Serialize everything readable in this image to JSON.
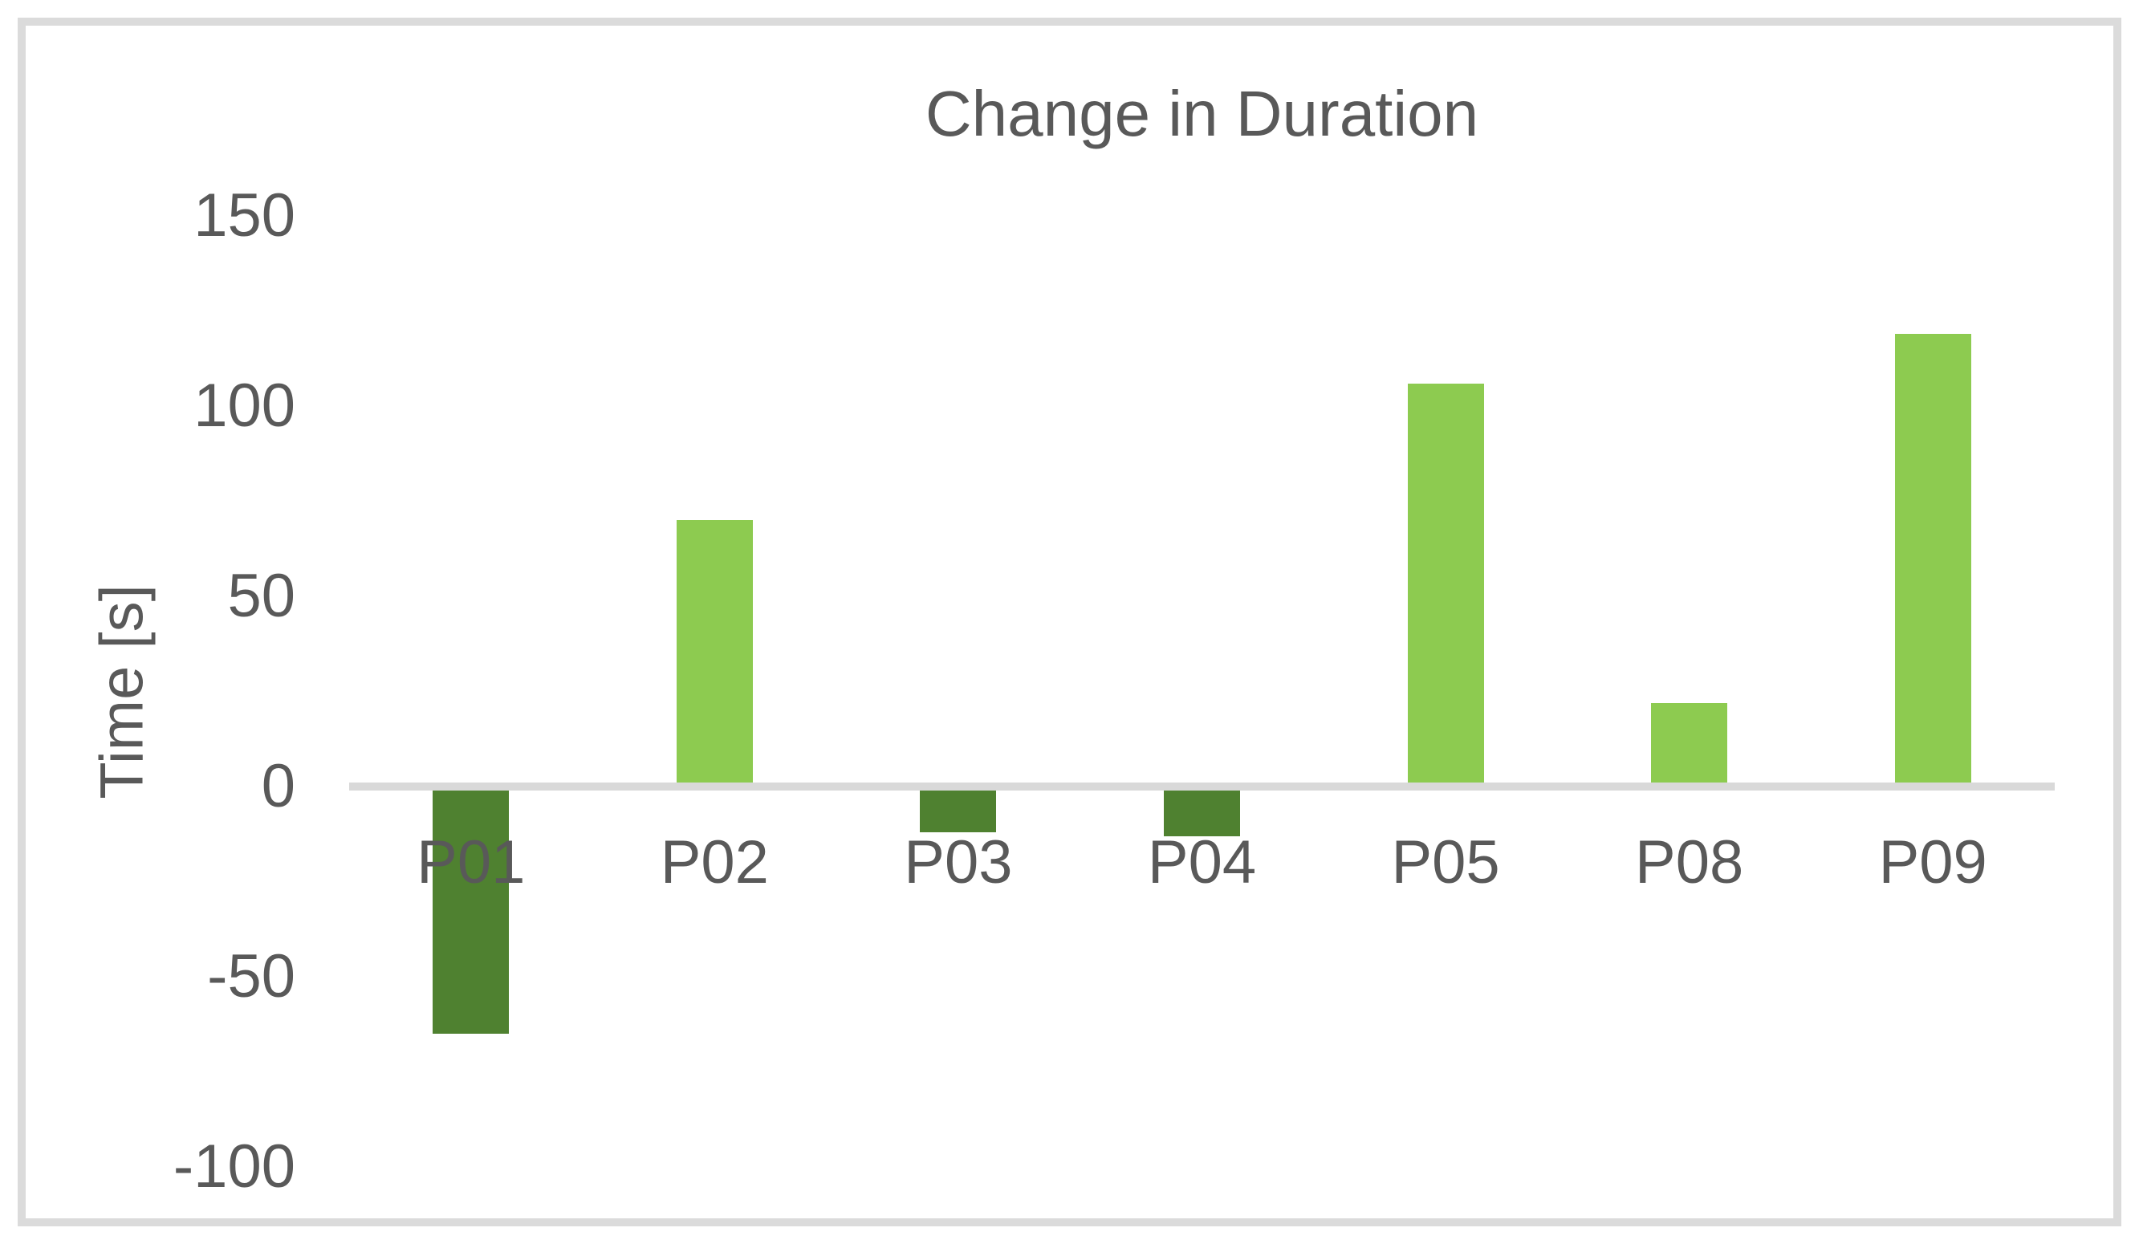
{
  "chart_data": {
    "type": "bar",
    "title": "Change in Duration",
    "ylabel": "Time [s]",
    "categories": [
      "P01",
      "P02",
      "P03",
      "P04",
      "P05",
      "P08",
      "P09"
    ],
    "values": [
      -65,
      70,
      -12,
      -13,
      106,
      22,
      119
    ],
    "yticks": [
      150,
      100,
      50,
      0,
      -50,
      -100
    ],
    "ylim": [
      -100,
      150
    ],
    "grid": false,
    "legend": false,
    "colors": {
      "bar_positive": "#8dcb50",
      "bar_negative": "#4f8130",
      "axis_line": "#d9d9d9",
      "text": "#595959",
      "frame_border": "#dbdbdb",
      "background": "#ffffff"
    }
  }
}
